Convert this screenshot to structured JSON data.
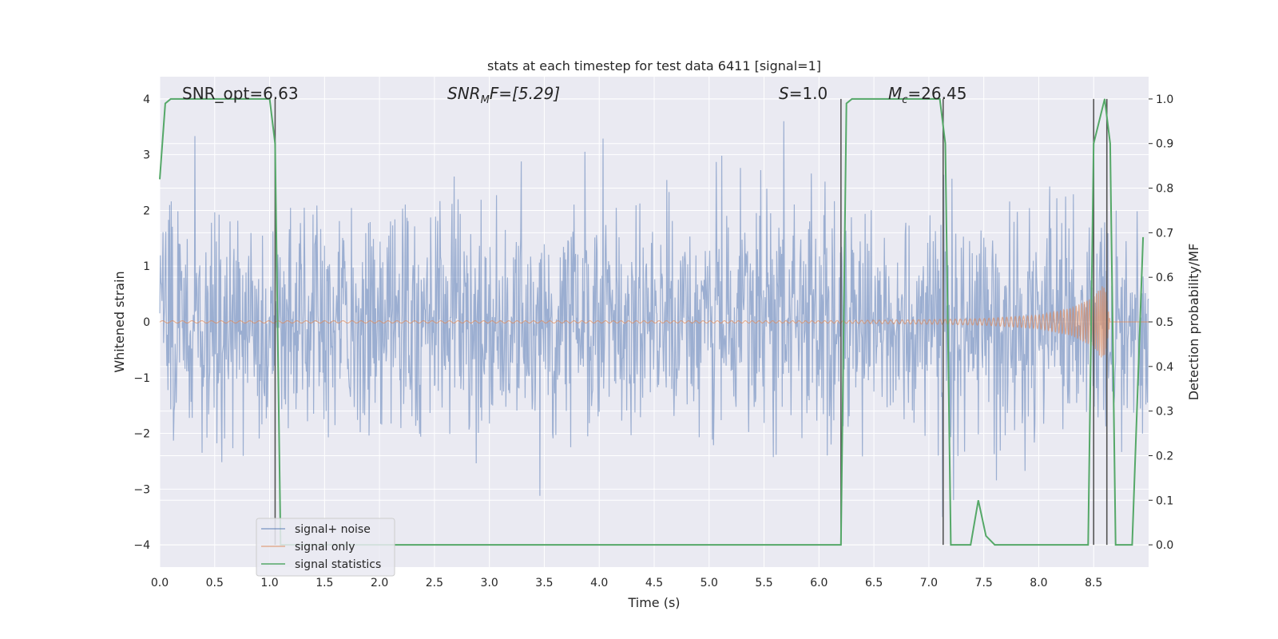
{
  "chart_data": {
    "type": "line",
    "title": "stats at each timestep for test data 6411 [signal=1]",
    "xlabel": "Time (s)",
    "ylabel": "Whitened strain",
    "ylabel_right": "Detection probability/MF",
    "xlim": [
      0.0,
      9.0
    ],
    "ylim": [
      -4.4,
      4.4
    ],
    "ylim_right": [
      -0.05,
      1.05
    ],
    "xticks": [
      "0.0",
      "0.5",
      "1.0",
      "1.5",
      "2.0",
      "2.5",
      "3.0",
      "3.5",
      "4.0",
      "4.5",
      "5.0",
      "5.5",
      "6.0",
      "6.5",
      "7.0",
      "7.5",
      "8.0",
      "8.5"
    ],
    "xtick_values": [
      0.0,
      0.5,
      1.0,
      1.5,
      2.0,
      2.5,
      3.0,
      3.5,
      4.0,
      4.5,
      5.0,
      5.5,
      6.0,
      6.5,
      7.0,
      7.5,
      8.0,
      8.5
    ],
    "yticks": [
      "−4",
      "−3",
      "−2",
      "−1",
      "0",
      "1",
      "2",
      "3",
      "4"
    ],
    "ytick_values": [
      -4,
      -3,
      -2,
      -1,
      0,
      1,
      2,
      3,
      4
    ],
    "yticks_right": [
      "0.0",
      "0.1",
      "0.2",
      "0.3",
      "0.4",
      "0.5",
      "0.6",
      "0.7",
      "0.8",
      "0.9",
      "1.0"
    ],
    "ytick_right_values": [
      0.0,
      0.1,
      0.2,
      0.3,
      0.4,
      0.5,
      0.6,
      0.7,
      0.8,
      0.9,
      1.0
    ],
    "grid": true,
    "legend_position": "lower-left",
    "annotations": {
      "snr_opt": "SNR_opt=6.63",
      "snr_mf": "SNR",
      "snr_mf_sub": "M",
      "snr_mf_rest": "F=[5.29]",
      "s_italic": "S",
      "s_rest": "=1.0",
      "mc_italic": "M",
      "mc_sub": "c",
      "mc_rest": "=26.45"
    },
    "series": [
      {
        "name": "signal+ noise",
        "color": "#4c72b0",
        "noise_sigma": 1.0,
        "envelope_approx": [
          [
            0.0,
            -3.2,
            3.6
          ],
          [
            9.0,
            -3.2,
            3.6
          ]
        ]
      },
      {
        "name": "signal only",
        "color": "#dd8452",
        "chirp_x": [
          6.0,
          7.0,
          7.5,
          8.0,
          8.3,
          8.5,
          8.55,
          8.6,
          8.65
        ],
        "chirp_amplitude": [
          0.02,
          0.04,
          0.06,
          0.12,
          0.25,
          0.45,
          0.6,
          0.7,
          0.0
        ]
      },
      {
        "name": "signal statistics",
        "color": "#55a868",
        "x": [
          0.0,
          0.05,
          0.1,
          0.2,
          0.5,
          0.8,
          1.0,
          1.05,
          1.1,
          1.2,
          1.5,
          6.0,
          6.2,
          6.25,
          6.3,
          6.4,
          7.0,
          7.1,
          7.15,
          7.2,
          7.3,
          7.38,
          7.45,
          7.52,
          7.6,
          8.0,
          8.4,
          8.45,
          8.5,
          8.6,
          8.65,
          8.7,
          8.85,
          8.95
        ],
        "y": [
          0.82,
          0.99,
          1.0,
          1.0,
          1.0,
          1.0,
          1.0,
          0.9,
          0.0,
          0.0,
          0.0,
          0.0,
          0.0,
          0.99,
          1.0,
          1.0,
          1.0,
          1.0,
          0.9,
          0.0,
          0.0,
          0.0,
          0.1,
          0.02,
          0.0,
          0.0,
          0.0,
          0.0,
          0.9,
          1.0,
          0.9,
          0.0,
          0.0,
          0.69
        ]
      }
    ],
    "vertical_markers": [
      1.05,
      6.2,
      7.13,
      8.5,
      8.62
    ]
  }
}
